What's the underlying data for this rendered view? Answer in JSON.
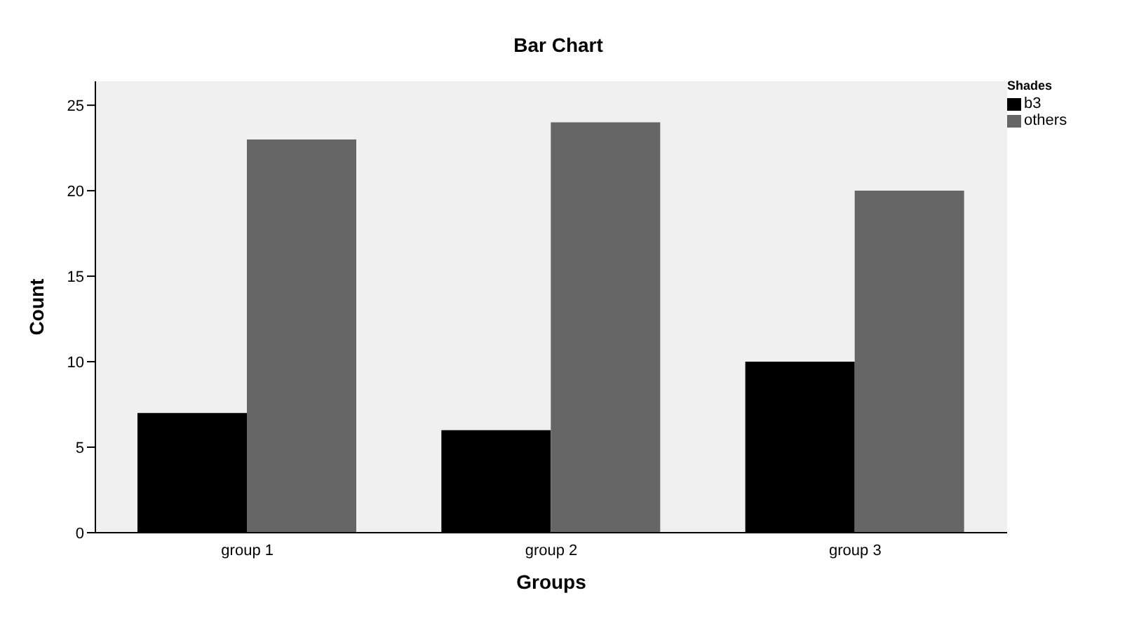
{
  "chart_data": {
    "type": "bar",
    "title": "Bar Chart",
    "xlabel": "Groups",
    "ylabel": "Count",
    "legend_title": "Shades",
    "categories": [
      "group 1",
      "group 2",
      "group 3"
    ],
    "series": [
      {
        "name": "b3",
        "color": "#000000",
        "values": [
          7,
          6,
          10
        ]
      },
      {
        "name": "others",
        "color": "#666666",
        "values": [
          23,
          24,
          20
        ]
      }
    ],
    "ylim": [
      0,
      26.4
    ],
    "yticks": [
      0,
      5,
      10,
      15,
      20,
      25
    ],
    "grid": false,
    "legend": "top right"
  }
}
